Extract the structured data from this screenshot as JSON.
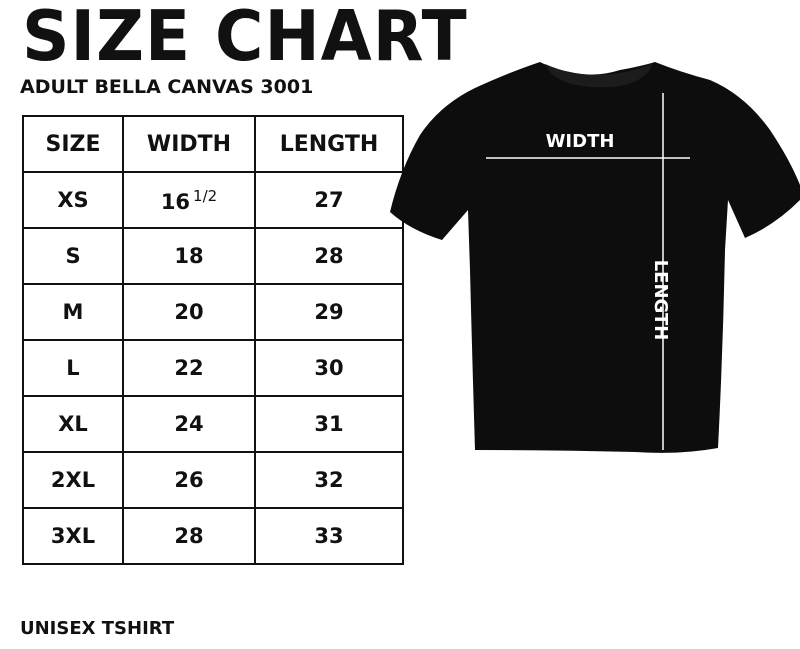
{
  "title": "SIZE CHART",
  "subtitle": "ADULT BELLA CANVAS 3001",
  "footer": "UNISEX TSHIRT",
  "table": {
    "headers": [
      "SIZE",
      "WIDTH",
      "LENGTH"
    ],
    "rows": [
      {
        "size": "XS",
        "width": "16",
        "width_fraction": "1/2",
        "length": "27"
      },
      {
        "size": "S",
        "width": "18",
        "width_fraction": "",
        "length": "28"
      },
      {
        "size": "M",
        "width": "20",
        "width_fraction": "",
        "length": "29"
      },
      {
        "size": "L",
        "width": "22",
        "width_fraction": "",
        "length": "30"
      },
      {
        "size": "XL",
        "width": "24",
        "width_fraction": "",
        "length": "31"
      },
      {
        "size": "2XL",
        "width": "26",
        "width_fraction": "",
        "length": "32"
      },
      {
        "size": "3XL",
        "width": "28",
        "width_fraction": "",
        "length": "33"
      }
    ]
  },
  "shirt": {
    "width_label": "WIDTH",
    "length_label": "LENGTH",
    "shirt_color": "#0d0d0d",
    "line_color": "#ffffff"
  }
}
